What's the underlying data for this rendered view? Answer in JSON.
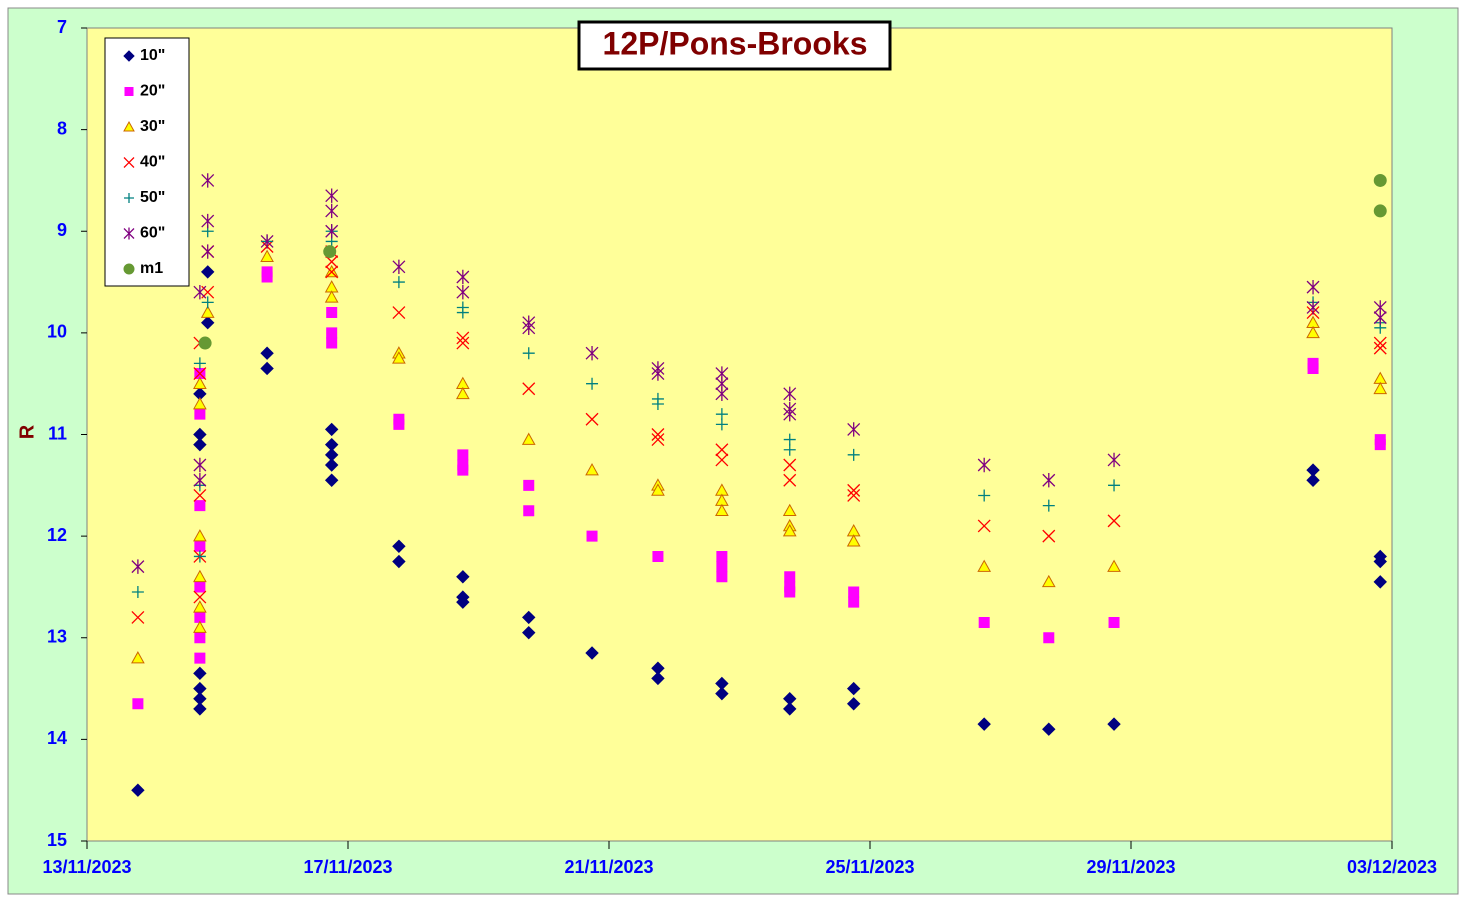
{
  "chart_data": {
    "type": "scatter",
    "title": "12P/Pons-Brooks",
    "y_label": "R",
    "xlim": [
      45243,
      45263
    ],
    "xticks": [
      {
        "value": 45243,
        "label": "13/11/2023"
      },
      {
        "value": 45247,
        "label": "17/11/2023"
      },
      {
        "value": 45251,
        "label": "21/11/2023"
      },
      {
        "value": 45255,
        "label": "25/11/2023"
      },
      {
        "value": 45259,
        "label": "29/11/2023"
      },
      {
        "value": 45263,
        "label": "03/12/2023"
      }
    ],
    "ylim": [
      7,
      15
    ],
    "y_inverted": true,
    "yticks": [
      7,
      8,
      9,
      10,
      11,
      12,
      13,
      14,
      15
    ],
    "legend": "top-left",
    "series": [
      {
        "name": "10\"",
        "color": "#000080",
        "marker": "diamond",
        "x": [
          45243.78,
          45244.73,
          45244.73,
          45244.73,
          45244.73,
          45244.73,
          45244.73,
          45244.73,
          45244.85,
          45244.85,
          45245.76,
          45245.76,
          45246.75,
          45246.75,
          45246.75,
          45246.75,
          45246.75,
          45247.78,
          45247.78,
          45248.76,
          45248.76,
          45248.76,
          45249.77,
          45249.77,
          45250.74,
          45251.75,
          45251.75,
          45252.73,
          45252.73,
          45253.77,
          45253.77,
          45254.75,
          45254.75,
          45256.75,
          45257.74,
          45258.74,
          45261.79,
          45261.79,
          45262.82,
          45262.82,
          45262.82
        ],
        "values": [
          14.5,
          13.7,
          13.6,
          13.5,
          13.35,
          11.1,
          11.0,
          10.6,
          9.9,
          9.4,
          10.2,
          10.35,
          10.95,
          11.1,
          11.2,
          11.3,
          11.45,
          12.1,
          12.25,
          12.4,
          12.6,
          12.65,
          12.8,
          12.95,
          13.15,
          13.3,
          13.4,
          13.45,
          13.55,
          13.6,
          13.7,
          13.5,
          13.65,
          13.85,
          13.9,
          13.85,
          11.35,
          11.45,
          12.2,
          12.25,
          12.45
        ]
      },
      {
        "name": "20\"",
        "color": "#ff00ff",
        "marker": "square",
        "x": [
          45243.78,
          45244.73,
          45244.73,
          45244.73,
          45244.73,
          45244.73,
          45244.73,
          45244.73,
          45244.73,
          45245.76,
          45245.76,
          45246.75,
          45246.75,
          45246.75,
          45247.78,
          45247.78,
          45248.76,
          45248.76,
          45248.76,
          45249.77,
          45249.77,
          45250.74,
          45251.75,
          45252.73,
          45252.73,
          45252.73,
          45253.77,
          45253.77,
          45253.77,
          45254.75,
          45254.75,
          45256.75,
          45257.74,
          45258.74,
          45261.79,
          45261.79,
          45262.82,
          45262.82
        ],
        "values": [
          13.65,
          13.2,
          13.0,
          12.8,
          12.5,
          12.1,
          11.7,
          10.8,
          10.4,
          9.4,
          9.45,
          9.8,
          10.0,
          10.1,
          10.85,
          10.9,
          11.2,
          11.3,
          11.35,
          11.5,
          11.75,
          12.0,
          12.2,
          12.2,
          12.3,
          12.4,
          12.4,
          12.5,
          12.55,
          12.55,
          12.65,
          12.85,
          13.0,
          12.85,
          10.3,
          10.35,
          11.05,
          11.1
        ]
      },
      {
        "name": "30\"",
        "color": "#ffff00",
        "stroke": "#cc6600",
        "marker": "triangle",
        "x": [
          45243.78,
          45244.73,
          45244.73,
          45244.73,
          45244.73,
          45244.73,
          45244.73,
          45244.85,
          45245.76,
          45246.75,
          45246.75,
          45246.75,
          45247.78,
          45247.78,
          45248.76,
          45248.76,
          45249.77,
          45250.74,
          45251.75,
          45251.75,
          45252.73,
          45252.73,
          45252.73,
          45253.77,
          45253.77,
          45253.77,
          45254.75,
          45254.75,
          45256.75,
          45257.74,
          45258.74,
          45261.79,
          45261.79,
          45262.82,
          45262.82
        ],
        "values": [
          13.2,
          12.9,
          12.7,
          12.4,
          12.0,
          10.7,
          10.5,
          9.8,
          9.25,
          9.4,
          9.55,
          9.65,
          10.2,
          10.25,
          10.5,
          10.6,
          11.05,
          11.35,
          11.5,
          11.55,
          11.55,
          11.65,
          11.75,
          11.75,
          11.9,
          11.95,
          11.95,
          12.05,
          12.3,
          12.45,
          12.3,
          9.9,
          10.0,
          10.45,
          10.55
        ]
      },
      {
        "name": "40\"",
        "color": "#ff0000",
        "marker": "x",
        "x": [
          45243.78,
          45244.73,
          45244.73,
          45244.73,
          45244.73,
          45244.73,
          45244.85,
          45244.85,
          45245.76,
          45246.75,
          45246.75,
          45246.75,
          45247.78,
          45248.76,
          45248.76,
          45249.77,
          45250.74,
          45251.75,
          45251.75,
          45252.73,
          45252.73,
          45253.77,
          45253.77,
          45254.75,
          45254.75,
          45256.75,
          45257.74,
          45258.74,
          45261.79,
          45262.82,
          45262.82
        ],
        "values": [
          12.8,
          12.6,
          12.2,
          11.6,
          10.4,
          10.1,
          9.6,
          9.2,
          9.15,
          9.2,
          9.3,
          9.4,
          9.8,
          10.05,
          10.1,
          10.55,
          10.85,
          11.0,
          11.05,
          11.15,
          11.25,
          11.3,
          11.45,
          11.55,
          11.6,
          11.9,
          12.0,
          11.85,
          9.8,
          10.1,
          10.15
        ]
      },
      {
        "name": "50\"",
        "color": "#008080",
        "marker": "plus",
        "x": [
          45243.78,
          45244.73,
          45244.73,
          45244.73,
          45244.85,
          45244.85,
          45245.76,
          45246.75,
          45246.75,
          45247.78,
          45248.76,
          45248.76,
          45249.77,
          45250.74,
          45251.75,
          45251.75,
          45252.73,
          45252.73,
          45253.77,
          45253.77,
          45254.75,
          45256.75,
          45257.74,
          45258.74,
          45261.79,
          45262.82,
          45262.82
        ],
        "values": [
          12.55,
          12.2,
          11.5,
          10.3,
          9.7,
          9.0,
          9.1,
          9.0,
          9.1,
          9.5,
          9.75,
          9.8,
          10.2,
          10.5,
          10.65,
          10.7,
          10.8,
          10.9,
          11.05,
          11.15,
          11.2,
          11.6,
          11.7,
          11.5,
          9.7,
          9.9,
          9.95
        ]
      },
      {
        "name": "60\"",
        "color": "#800080",
        "marker": "star",
        "x": [
          45243.78,
          45244.73,
          45244.73,
          45244.73,
          45244.85,
          45244.85,
          45244.85,
          45245.76,
          45246.75,
          45246.75,
          45246.75,
          45247.78,
          45248.76,
          45248.76,
          45249.77,
          45249.77,
          45250.74,
          45251.75,
          45251.75,
          45252.73,
          45252.73,
          45252.73,
          45253.77,
          45253.77,
          45253.77,
          45254.75,
          45256.75,
          45257.74,
          45258.74,
          45261.79,
          45261.79,
          45262.82,
          45262.82
        ],
        "values": [
          12.3,
          11.3,
          11.45,
          9.6,
          9.2,
          8.9,
          8.5,
          9.1,
          8.65,
          8.8,
          9.0,
          9.35,
          9.45,
          9.6,
          9.9,
          9.95,
          10.2,
          10.35,
          10.4,
          10.4,
          10.5,
          10.6,
          10.6,
          10.75,
          10.8,
          10.95,
          11.3,
          11.45,
          11.25,
          9.55,
          9.75,
          9.75,
          9.85
        ]
      },
      {
        "name": "m1",
        "color": "#669933",
        "marker": "circle",
        "x": [
          45244.81,
          45246.72,
          45262.82,
          45262.82
        ],
        "values": [
          10.1,
          9.2,
          8.5,
          8.8
        ]
      }
    ]
  }
}
